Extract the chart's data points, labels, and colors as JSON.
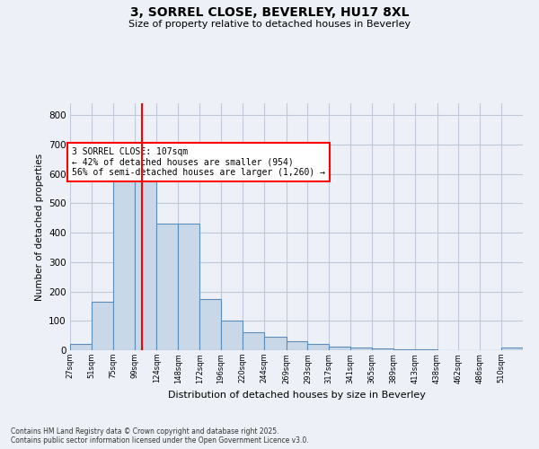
{
  "title_line1": "3, SORREL CLOSE, BEVERLEY, HU17 8XL",
  "title_line2": "Size of property relative to detached houses in Beverley",
  "xlabel": "Distribution of detached houses by size in Beverley",
  "ylabel": "Number of detached properties",
  "property_size": 107,
  "annotation_text": "3 SORREL CLOSE: 107sqm\n← 42% of detached houses are smaller (954)\n56% of semi-detached houses are larger (1,260) →",
  "footer_line1": "Contains HM Land Registry data © Crown copyright and database right 2025.",
  "footer_line2": "Contains public sector information licensed under the Open Government Licence v3.0.",
  "bin_edges": [
    27,
    51,
    75,
    99,
    124,
    148,
    172,
    196,
    220,
    244,
    269,
    293,
    317,
    341,
    365,
    389,
    413,
    438,
    462,
    486,
    510
  ],
  "bar_heights": [
    20,
    165,
    580,
    650,
    430,
    430,
    175,
    100,
    60,
    45,
    30,
    20,
    12,
    8,
    5,
    3,
    2,
    1,
    1,
    0,
    8
  ],
  "bar_color": "#c8d8e8",
  "bar_edge_color": "#5b8db8",
  "grid_color": "#c0c8d8",
  "red_line_x": 107,
  "ylim": [
    0,
    840
  ],
  "yticks": [
    0,
    100,
    200,
    300,
    400,
    500,
    600,
    700,
    800
  ],
  "background_color": "#edf1f7",
  "plot_bg_color": "#edf1f7"
}
